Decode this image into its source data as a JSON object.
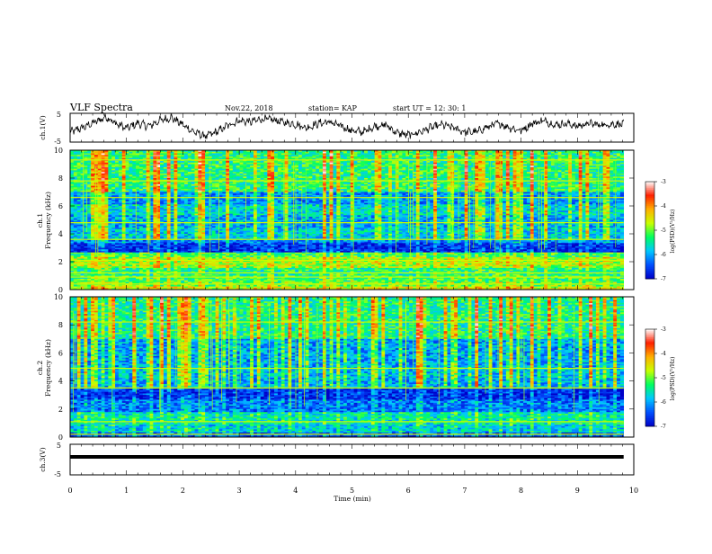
{
  "header": {
    "title": "VLF Spectra",
    "date": "Nov.22, 2018",
    "station": "station= KAP",
    "start": "start  UT =   12: 30: 1"
  },
  "chart_data": [
    {
      "type": "line",
      "panel": "ch1_waveform",
      "ylabel": "ch.1(V)",
      "ylim": [
        -5,
        5
      ],
      "yticks": [
        "5",
        "-5"
      ],
      "xlim": [
        0,
        10
      ],
      "x_end": 9.82,
      "color": "#000000",
      "x": [
        0,
        0.25,
        0.5,
        0.65,
        0.8,
        1.0,
        1.2,
        1.4,
        1.6,
        1.8,
        2.0,
        2.2,
        2.4,
        2.6,
        2.8,
        3.0,
        3.2,
        3.4,
        3.6,
        3.8,
        4.0,
        4.2,
        4.4,
        4.6,
        4.8,
        5.0,
        5.2,
        5.4,
        5.6,
        5.8,
        6.0,
        6.2,
        6.4,
        6.6,
        6.8,
        7.0,
        7.2,
        7.4,
        7.6,
        7.8,
        8.0,
        8.2,
        8.4,
        8.6,
        8.8,
        9.0,
        9.2,
        9.4,
        9.6,
        9.82
      ],
      "y": [
        -1.5,
        0.2,
        2.5,
        3.8,
        1.5,
        -0.2,
        1.5,
        0.5,
        2.6,
        3.5,
        1.0,
        -1.5,
        -3.0,
        -1.5,
        0.8,
        2.5,
        2.0,
        3.0,
        2.8,
        1.8,
        1.2,
        0.0,
        1.5,
        2.0,
        0.5,
        -1.0,
        -1.5,
        0.5,
        1.0,
        -1.8,
        -2.6,
        -1.5,
        0.0,
        1.0,
        0.0,
        -1.5,
        -1.5,
        0.2,
        1.5,
        0.0,
        -1.0,
        1.5,
        2.5,
        1.0,
        1.5,
        0.5,
        1.5,
        1.0,
        1.2,
        1.2
      ]
    },
    {
      "type": "heatmap",
      "panel": "ch1_spectrogram",
      "ylabel": "ch.1",
      "ylabel2": "Frequency (kHz)",
      "ylim": [
        0,
        10
      ],
      "yticks": [
        0,
        2,
        4,
        6,
        8,
        10
      ],
      "xlim": [
        0,
        10
      ],
      "x_end": 9.82,
      "bands": [
        {
          "f0": 0.0,
          "f1": 0.25,
          "level": 0.6
        },
        {
          "f0": 0.25,
          "f1": 0.6,
          "level": 0.5
        },
        {
          "f0": 0.6,
          "f1": 1.0,
          "level": 0.45
        },
        {
          "f0": 1.0,
          "f1": 1.6,
          "level": 0.4
        },
        {
          "f0": 1.6,
          "f1": 2.3,
          "level": 0.55
        },
        {
          "f0": 2.3,
          "f1": 2.7,
          "level": 0.45
        },
        {
          "f0": 2.7,
          "f1": 3.3,
          "level": 0.08
        },
        {
          "f0": 3.3,
          "f1": 3.6,
          "level": 0.2
        },
        {
          "f0": 3.6,
          "f1": 4.4,
          "level": 0.3
        },
        {
          "f0": 4.4,
          "f1": 5.3,
          "level": 0.25
        },
        {
          "f0": 5.3,
          "f1": 6.1,
          "level": 0.32
        },
        {
          "f0": 6.1,
          "f1": 7.0,
          "level": 0.22
        },
        {
          "f0": 7.0,
          "f1": 10.0,
          "level": 0.42
        }
      ],
      "lines_khz": [
        0.4,
        0.9,
        1.2,
        2.1,
        3.6,
        4.8,
        6.6,
        7.8,
        9.3
      ]
    },
    {
      "type": "heatmap",
      "panel": "ch2_spectrogram",
      "ylabel": "ch.2",
      "ylabel2": "Frequency (kHz)",
      "ylim": [
        0,
        10
      ],
      "yticks": [
        0,
        2,
        4,
        6,
        8,
        10
      ],
      "xlim": [
        0,
        10
      ],
      "x_end": 9.82,
      "bands": [
        {
          "f0": 0.0,
          "f1": 0.35,
          "level": 0.15
        },
        {
          "f0": 0.35,
          "f1": 0.9,
          "level": 0.3
        },
        {
          "f0": 0.9,
          "f1": 1.8,
          "level": 0.35
        },
        {
          "f0": 1.8,
          "f1": 2.7,
          "level": 0.18
        },
        {
          "f0": 2.7,
          "f1": 3.4,
          "level": 0.08
        },
        {
          "f0": 3.4,
          "f1": 4.2,
          "level": 0.25
        },
        {
          "f0": 4.2,
          "f1": 5.0,
          "level": 0.28
        },
        {
          "f0": 5.0,
          "f1": 7.0,
          "level": 0.24
        },
        {
          "f0": 7.0,
          "f1": 10.0,
          "level": 0.4
        }
      ],
      "lines_khz": [
        0.2,
        1.1,
        3.5,
        4.9,
        8.2
      ]
    },
    {
      "type": "line",
      "panel": "ch3_waveform",
      "ylabel": "ch.3(V)",
      "ylim": [
        -5,
        5
      ],
      "yticks": [
        "5",
        "-5"
      ],
      "xlim": [
        0,
        10
      ],
      "x_end": 9.82,
      "value": 0.9,
      "color": "#000000"
    }
  ],
  "colorbar": {
    "label": "log(PSD)(V²/Hz)",
    "ticks": [
      "-3",
      "-4",
      "-5",
      "-6",
      "-7"
    ],
    "colors": [
      "#0000c8",
      "#0050ff",
      "#00c8ff",
      "#00ff60",
      "#c8ff00",
      "#ffb000",
      "#ff2000",
      "#ffffff"
    ]
  },
  "x_axis": {
    "label": "Time  (min)",
    "ticks": [
      "0",
      "1",
      "2",
      "3",
      "4",
      "5",
      "6",
      "7",
      "8",
      "9",
      "10"
    ]
  }
}
